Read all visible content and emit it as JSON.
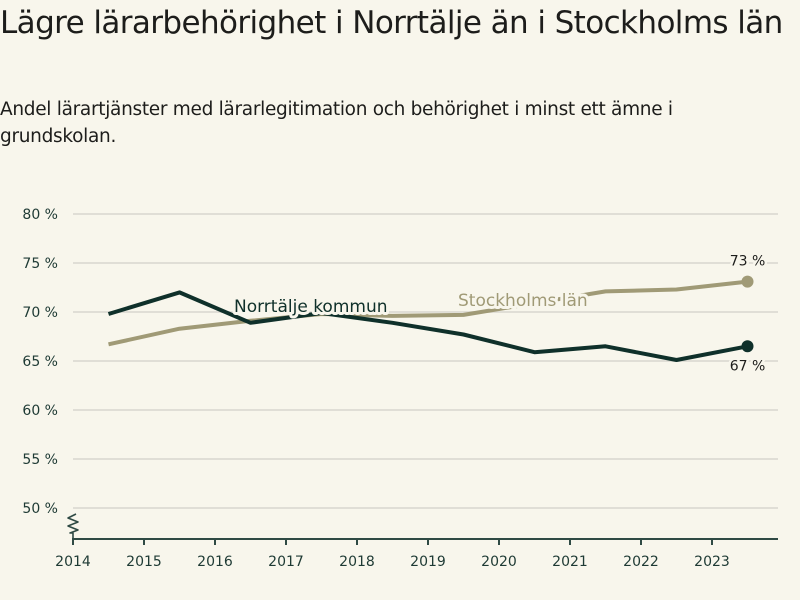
{
  "header": {
    "title": "Lägre lärarbehörighet i Norrtälje än i Stockholms län",
    "subtitle": "Andel lärartjänster med lärarlegitimation och behörighet i minst ett ämne i grundskolan."
  },
  "chart_data": {
    "type": "line",
    "title": "Lägre lärarbehörighet i Norrtälje än i Stockholms län",
    "subtitle": "Andel lärartjänster med lärarlegitimation och behörighet i minst ett ämne i grundskolan.",
    "xlabel": "",
    "ylabel": "",
    "x": [
      2014.5,
      2015.5,
      2016.5,
      2017.5,
      2018.5,
      2019.5,
      2020.5,
      2021.5,
      2022.5,
      2023.5
    ],
    "x_ticks": [
      "2014",
      "2015",
      "2016",
      "2017",
      "2018",
      "2019",
      "2020",
      "2021",
      "2022",
      "2023"
    ],
    "x_tick_values": [
      2014,
      2015,
      2016,
      2017,
      2018,
      2019,
      2020,
      2021,
      2022,
      2023
    ],
    "xlim": [
      2014,
      2024
    ],
    "y_ticks": [
      "80 %",
      "75 %",
      "70 %",
      "65 %",
      "60 %",
      "55 %",
      "50 %"
    ],
    "y_tick_values": [
      80,
      75,
      70,
      65,
      60,
      55,
      50
    ],
    "ylim": [
      47,
      80
    ],
    "y_axis_break": true,
    "grid": true,
    "legend": "inline labels",
    "series": [
      {
        "name": "Stockholms län",
        "color": "#a09a76",
        "values": [
          66.7,
          68.3,
          69.1,
          69.8,
          69.6,
          69.7,
          70.9,
          72.1,
          72.3,
          73.1
        ],
        "end_label": "73 %",
        "label_position": "above line, 2019.5"
      },
      {
        "name": "Norrtälje kommun",
        "color": "#0f302a",
        "values": [
          69.8,
          72.0,
          68.9,
          69.9,
          68.9,
          67.7,
          65.9,
          66.5,
          65.1,
          66.5
        ],
        "end_label": "67 %",
        "label_position": "above line, 2016.5"
      }
    ]
  },
  "colors": {
    "background": "#f8f6ec",
    "grid": "#e0ded6",
    "axis": "#2f4a44",
    "text": "#1d1d1b"
  }
}
